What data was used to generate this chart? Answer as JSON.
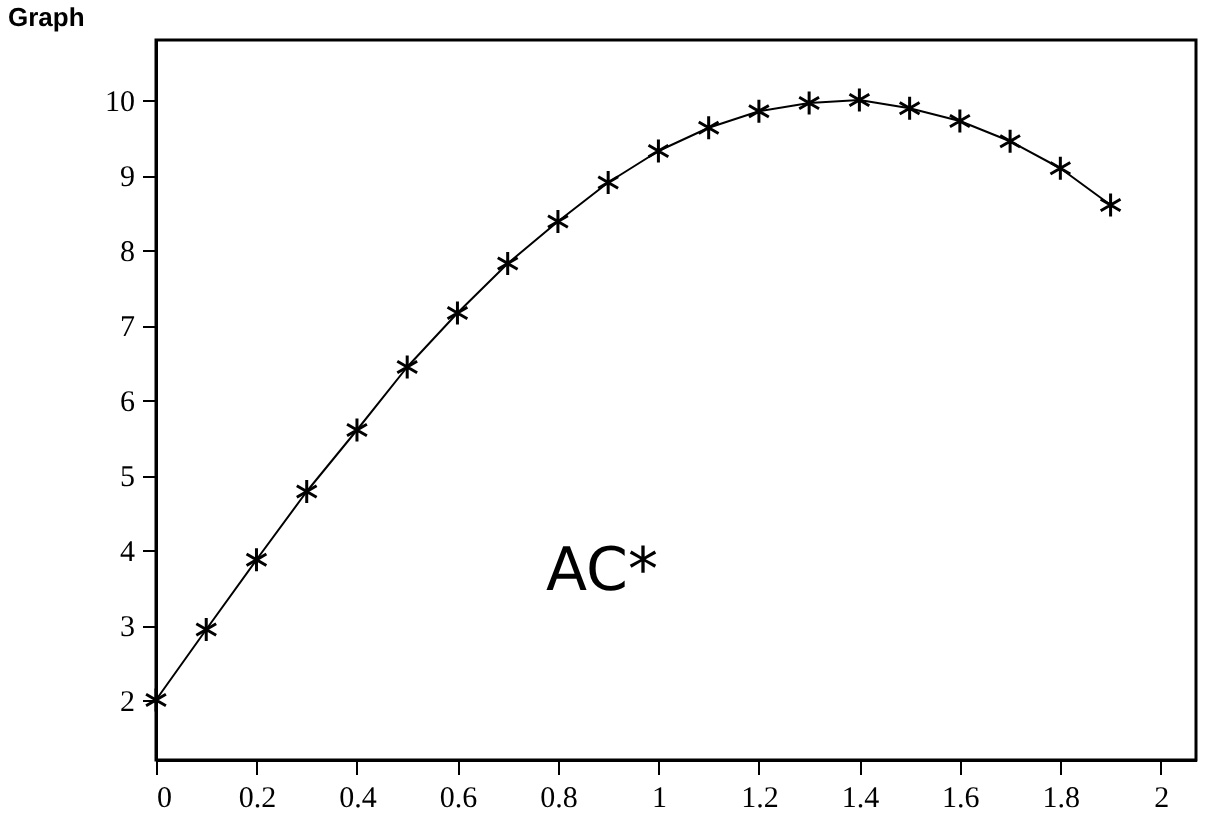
{
  "chart_data": {
    "type": "line",
    "title": "Graph",
    "marker": "cross",
    "line_style": "solid",
    "x": [
      0,
      0.1,
      0.2,
      0.3,
      0.4,
      0.5,
      0.6,
      0.7,
      0.8,
      0.9,
      1.0,
      1.1,
      1.2,
      1.3,
      1.4,
      1.5,
      1.6,
      1.7,
      1.8,
      1.9
    ],
    "series": [
      {
        "color": "#000000",
        "values": [
          2.0,
          2.94,
          3.87,
          4.78,
          5.6,
          6.44,
          7.16,
          7.82,
          8.38,
          8.9,
          9.32,
          9.63,
          9.85,
          9.96,
          10.0,
          9.89,
          9.72,
          9.45,
          9.09,
          8.6
        ]
      }
    ],
    "xlim": [
      0,
      2.07
    ],
    "ylim": [
      1.2,
      10.8
    ],
    "xticks": [
      0,
      0.2,
      0.4,
      0.6,
      0.8,
      1,
      1.2,
      1.4,
      1.6,
      1.8,
      2
    ],
    "yticks": [
      2,
      3,
      4,
      5,
      6,
      7,
      8,
      9,
      10
    ],
    "grid": false,
    "annotations": [
      "AC*"
    ]
  }
}
